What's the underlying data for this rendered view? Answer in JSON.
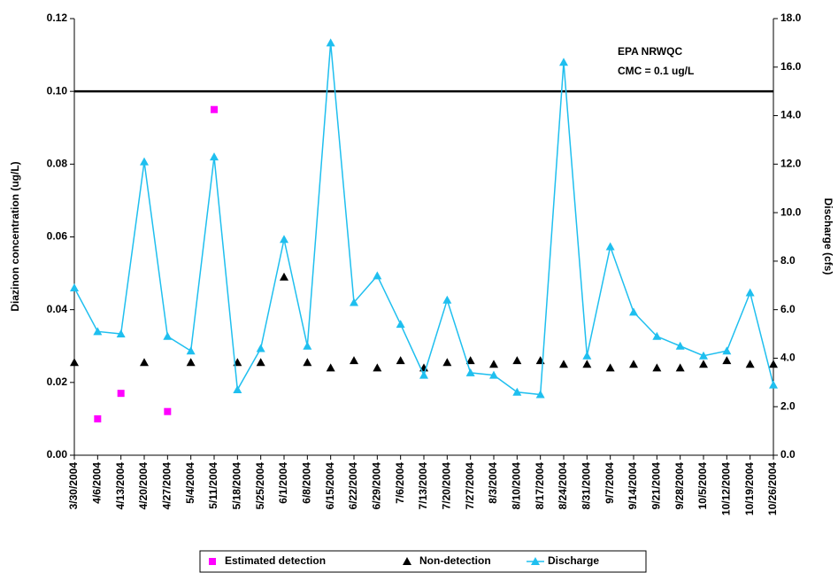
{
  "chart_data": {
    "type": "line",
    "categories": [
      "3/30/2004",
      "4/6/2004",
      "4/13/2004",
      "4/20/2004",
      "4/27/2004",
      "5/4/2004",
      "5/11/2004",
      "5/18/2004",
      "5/25/2004",
      "6/1/2004",
      "6/8/2004",
      "6/15/2004",
      "6/22/2004",
      "6/29/2004",
      "7/6/2004",
      "7/13/2004",
      "7/20/2004",
      "7/27/2004",
      "8/3/2004",
      "8/10/2004",
      "8/17/2004",
      "8/24/2004",
      "8/31/2004",
      "9/7/2004",
      "9/14/2004",
      "9/21/2004",
      "9/28/2004",
      "10/5/2004",
      "10/12/2004",
      "10/19/2004",
      "10/26/2004"
    ],
    "ylabel": "Diazinon concentration (ug/L)",
    "y2label": "Discharge (cfs)",
    "ylim": [
      0,
      0.12
    ],
    "yticks": [
      {
        "value": 0,
        "label": "0.00"
      },
      {
        "value": 0.02,
        "label": "0.02"
      },
      {
        "value": 0.04,
        "label": "0.04"
      },
      {
        "value": 0.06,
        "label": "0.06"
      },
      {
        "value": 0.08,
        "label": "0.08"
      },
      {
        "value": 0.1,
        "label": "0.10"
      },
      {
        "value": 0.12,
        "label": "0.12"
      }
    ],
    "y2lim": [
      0,
      18
    ],
    "y2ticks": [
      {
        "value": 0,
        "label": "0.0"
      },
      {
        "value": 2,
        "label": "2.0"
      },
      {
        "value": 4,
        "label": "4.0"
      },
      {
        "value": 6,
        "label": "6.0"
      },
      {
        "value": 8,
        "label": "8.0"
      },
      {
        "value": 10,
        "label": "10.0"
      },
      {
        "value": 12,
        "label": "12.0"
      },
      {
        "value": 14,
        "label": "14.0"
      },
      {
        "value": 16,
        "label": "16.0"
      },
      {
        "value": 18,
        "label": "18.0"
      }
    ],
    "reference_line": {
      "value": 0.1,
      "color": "#000000",
      "annotation": [
        "EPA NRWQC",
        "CMC = 0.1 ug/L"
      ]
    },
    "legend": "bottom",
    "series": [
      {
        "name": "Estimated detection",
        "color": "#ff00ff",
        "marker": "square",
        "line": false,
        "values": [
          null,
          0.01,
          0.017,
          null,
          0.012,
          null,
          0.095,
          null,
          null,
          null,
          null,
          null,
          null,
          null,
          null,
          null,
          null,
          null,
          null,
          null,
          null,
          null,
          null,
          null,
          null,
          null,
          null,
          null,
          null,
          null,
          null
        ]
      },
      {
        "name": "Non-detection",
        "color": "#000000",
        "marker": "triangle",
        "line": false,
        "values": [
          0.0255,
          null,
          null,
          0.0255,
          null,
          0.0255,
          null,
          0.0255,
          0.0255,
          0.049,
          0.0255,
          0.024,
          0.026,
          0.024,
          0.026,
          0.024,
          0.0255,
          0.026,
          0.025,
          0.026,
          0.026,
          0.025,
          0.025,
          0.024,
          0.025,
          0.024,
          0.024,
          0.025,
          0.026,
          0.025,
          0.025
        ]
      },
      {
        "name": "Discharge",
        "color": "#1fbfef",
        "marker": "triangle",
        "line": true,
        "axis": "y2",
        "values": [
          6.9,
          5.1,
          5.0,
          12.1,
          4.9,
          4.3,
          12.3,
          2.7,
          4.4,
          8.9,
          4.5,
          17.0,
          6.3,
          7.4,
          5.4,
          3.3,
          6.4,
          3.4,
          3.3,
          2.6,
          2.5,
          16.2,
          4.1,
          8.6,
          5.9,
          4.9,
          4.5,
          4.1,
          4.3,
          6.7,
          2.9
        ]
      }
    ]
  }
}
